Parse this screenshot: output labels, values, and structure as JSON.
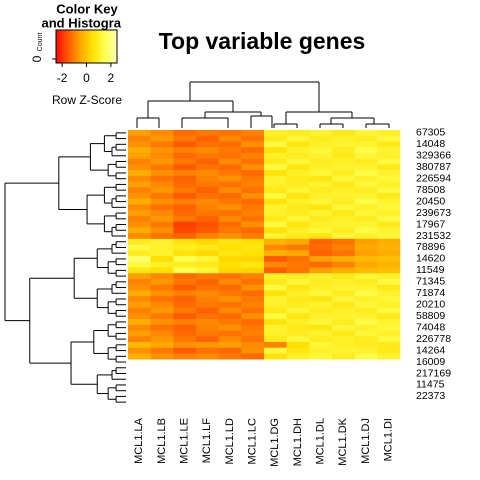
{
  "chart_data": {
    "type": "heatmap",
    "title": "Top variable genes",
    "key_title": "Color Key",
    "key_subtitle": "and Histogram",
    "key_count_label": "Count",
    "key_count_ticks": [
      0
    ],
    "key_xlabel": "Row Z-Score",
    "zlim": [
      -2.5,
      2.5
    ],
    "zticks": [
      -2,
      0,
      2
    ],
    "colors": [
      "#ff0000",
      "#ff5a00",
      "#ffa800",
      "#ffe000",
      "#ffff50",
      "#ffffb0"
    ],
    "columns": [
      "MCL1.LA",
      "MCL1.LB",
      "MCL1.LE",
      "MCL1.LF",
      "MCL1.LD",
      "MCL1.LC",
      "MCL1.DG",
      "MCL1.DH",
      "MCL1.DL",
      "MCL1.DK",
      "MCL1.DJ",
      "MCL1.DI"
    ],
    "rows": [
      "67305",
      null,
      "14048",
      null,
      "329366",
      null,
      "380787",
      null,
      "226594",
      null,
      "78508",
      null,
      "20450",
      null,
      "239673",
      null,
      "17967",
      null,
      "231532",
      null,
      "78896",
      null,
      "14620",
      null,
      "11549",
      null,
      "71345",
      null,
      "71874",
      null,
      "20210",
      null,
      "58809",
      null,
      "74048",
      null,
      "226778",
      null,
      "14264",
      null,
      "16009",
      null,
      "217169",
      null,
      "11475",
      null,
      "22373",
      null
    ],
    "values": [
      [
        -0.6,
        -0.9,
        -1.3,
        -1.1,
        -1.2,
        -1.0,
        1.0,
        0.9,
        1.1,
        0.8,
        1.2,
        1.0
      ],
      [
        -1.0,
        -0.7,
        -1.1,
        -1.4,
        -0.9,
        -1.2,
        0.8,
        1.2,
        0.9,
        1.0,
        0.9,
        1.3
      ],
      [
        -0.8,
        -1.1,
        -1.5,
        -1.2,
        -1.3,
        -0.8,
        1.3,
        0.7,
        1.0,
        1.1,
        1.1,
        0.8
      ],
      [
        -0.4,
        -0.8,
        -1.0,
        -0.9,
        -1.1,
        -1.3,
        0.6,
        1.0,
        1.2,
        0.9,
        1.4,
        1.1
      ],
      [
        -0.6,
        -0.9,
        -1.3,
        -1.1,
        -1.2,
        -1.0,
        1.0,
        0.9,
        1.1,
        0.8,
        1.2,
        1.0
      ],
      [
        -1.0,
        -0.7,
        -1.1,
        -1.4,
        -0.9,
        -1.2,
        0.8,
        1.2,
        0.9,
        1.0,
        0.9,
        1.3
      ],
      [
        -0.8,
        -1.1,
        -1.5,
        -1.2,
        -1.3,
        -0.8,
        1.3,
        0.7,
        1.0,
        1.1,
        1.1,
        0.8
      ],
      [
        -0.4,
        -0.8,
        -1.0,
        -0.9,
        -1.1,
        -1.3,
        0.6,
        1.0,
        1.2,
        0.9,
        1.4,
        1.1
      ],
      [
        -0.9,
        -1.2,
        -1.4,
        -1.0,
        -0.8,
        -1.1,
        1.1,
        0.8,
        0.7,
        1.2,
        1.0,
        1.2
      ],
      [
        -0.6,
        -0.9,
        -1.3,
        -1.1,
        -1.2,
        -1.0,
        1.0,
        0.9,
        1.1,
        0.8,
        1.2,
        1.0
      ],
      [
        -1.0,
        -0.7,
        -1.1,
        -1.4,
        -0.9,
        -1.2,
        0.8,
        1.2,
        0.9,
        1.0,
        0.9,
        1.3
      ],
      [
        -0.8,
        -1.1,
        -1.5,
        -1.2,
        -1.3,
        -0.8,
        1.3,
        0.7,
        1.0,
        1.1,
        1.1,
        0.8
      ],
      [
        -0.4,
        -0.8,
        -1.0,
        -0.9,
        -1.1,
        -1.3,
        0.6,
        1.0,
        1.2,
        0.9,
        1.4,
        1.1
      ],
      [
        -0.9,
        -1.2,
        -1.4,
        -1.0,
        -0.8,
        -1.1,
        1.1,
        0.8,
        0.7,
        1.2,
        1.0,
        1.2
      ],
      [
        -0.6,
        -0.9,
        -1.3,
        -1.1,
        -1.2,
        -1.0,
        1.0,
        0.9,
        1.1,
        0.8,
        1.2,
        1.0
      ],
      [
        -1.0,
        -0.7,
        -1.1,
        -1.4,
        -0.9,
        -1.2,
        0.8,
        1.2,
        0.9,
        1.0,
        0.9,
        1.3
      ],
      [
        -0.8,
        -1.1,
        -1.8,
        -1.6,
        -1.3,
        -0.8,
        1.3,
        0.7,
        1.0,
        1.1,
        1.1,
        0.8
      ],
      [
        -0.4,
        -0.8,
        -1.7,
        -1.5,
        -1.1,
        -1.3,
        0.6,
        1.0,
        1.2,
        0.9,
        1.4,
        1.1
      ],
      [
        -0.9,
        -1.2,
        -1.4,
        -1.0,
        -0.8,
        -1.1,
        1.1,
        0.8,
        0.7,
        1.2,
        1.0,
        1.2
      ],
      [
        0.9,
        1.1,
        0.6,
        0.4,
        0.7,
        0.5,
        -0.3,
        -0.5,
        -1.4,
        -1.2,
        -0.6,
        -0.4
      ],
      [
        1.3,
        1.0,
        0.9,
        0.8,
        0.5,
        0.7,
        -0.9,
        -1.1,
        -1.3,
        -1.0,
        -0.5,
        -0.3
      ],
      [
        0.9,
        1.1,
        0.6,
        0.4,
        0.7,
        0.5,
        -0.3,
        -0.5,
        -1.4,
        -1.2,
        -0.6,
        -0.4
      ],
      [
        1.8,
        0.5,
        1.5,
        1.2,
        0.4,
        0.3,
        -1.5,
        -1.2,
        -0.6,
        -0.4,
        -0.2,
        -0.1
      ],
      [
        1.3,
        1.0,
        0.9,
        0.8,
        0.5,
        0.7,
        -0.9,
        -1.1,
        -1.3,
        -1.0,
        -0.5,
        -0.3
      ],
      [
        0.7,
        0.5,
        1.5,
        1.2,
        0.4,
        0.3,
        -1.5,
        -1.2,
        -0.6,
        -0.4,
        -0.2,
        -0.1
      ],
      [
        -0.6,
        -0.9,
        -1.3,
        -1.1,
        -1.2,
        -1.0,
        1.0,
        0.9,
        1.1,
        0.8,
        1.2,
        1.0
      ],
      [
        -1.0,
        -0.7,
        -1.1,
        -1.4,
        -0.9,
        -1.2,
        0.8,
        1.2,
        0.9,
        1.0,
        0.9,
        1.3
      ],
      [
        -0.8,
        -1.1,
        -1.5,
        -1.2,
        -1.3,
        -0.8,
        1.3,
        0.7,
        1.0,
        1.1,
        1.1,
        0.8
      ],
      [
        -0.4,
        -0.8,
        -1.0,
        -0.9,
        -1.1,
        -1.3,
        0.6,
        1.0,
        1.2,
        0.9,
        1.4,
        1.1
      ],
      [
        -0.9,
        -1.2,
        -1.4,
        -1.0,
        -0.8,
        -1.1,
        1.1,
        0.8,
        0.7,
        1.2,
        1.0,
        1.2
      ],
      [
        -0.6,
        -0.9,
        -1.3,
        -1.1,
        -1.2,
        -1.0,
        1.0,
        0.9,
        1.1,
        0.8,
        1.2,
        1.0
      ],
      [
        -1.0,
        -0.7,
        -1.1,
        -1.4,
        -0.9,
        -1.2,
        0.8,
        1.2,
        0.9,
        1.0,
        0.9,
        1.3
      ],
      [
        -0.8,
        -1.1,
        -1.5,
        -1.2,
        -1.3,
        -0.8,
        1.3,
        0.7,
        1.0,
        1.1,
        1.1,
        0.8
      ],
      [
        -0.4,
        -0.8,
        -1.0,
        -0.9,
        -1.1,
        -1.3,
        0.6,
        1.0,
        1.2,
        0.9,
        1.4,
        1.1
      ],
      [
        -0.9,
        -1.2,
        -1.4,
        -1.0,
        -0.8,
        -1.1,
        1.1,
        0.8,
        0.7,
        1.2,
        1.0,
        1.2
      ],
      [
        -0.6,
        -0.9,
        -1.3,
        -1.1,
        -1.2,
        -1.0,
        1.0,
        0.9,
        1.1,
        0.8,
        1.2,
        1.0
      ],
      [
        -1.0,
        -0.7,
        -1.1,
        -1.4,
        -0.9,
        -1.2,
        0.8,
        1.2,
        0.9,
        1.0,
        0.9,
        1.3
      ],
      [
        -0.2,
        -0.5,
        -0.8,
        -0.7,
        -0.6,
        -0.9,
        -1.0,
        0.5,
        1.2,
        1.0,
        0.9,
        0.8
      ],
      [
        -0.8,
        -1.1,
        -1.5,
        -1.2,
        -1.3,
        -0.8,
        1.3,
        0.7,
        1.0,
        1.1,
        1.1,
        0.8
      ],
      [
        -0.4,
        -0.8,
        -1.0,
        -0.9,
        -1.1,
        -1.3,
        0.6,
        1.0,
        1.2,
        0.9,
        1.4,
        1.1
      ]
    ]
  }
}
